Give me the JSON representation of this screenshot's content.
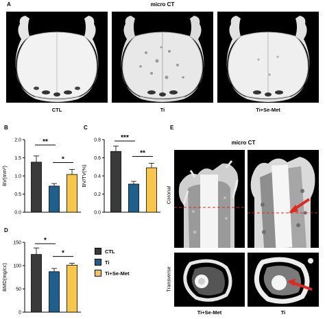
{
  "panel_a": {
    "letter": "A",
    "title": "micro CT",
    "captions": [
      "CTL",
      "Ti",
      "Ti+Se-Met"
    ]
  },
  "panel_b": {
    "letter": "B"
  },
  "panel_c": {
    "letter": "C"
  },
  "panel_d": {
    "letter": "D"
  },
  "panel_e": {
    "letter": "E",
    "title": "micro CT",
    "row_labels": [
      "Coronal",
      "Transverse"
    ],
    "captions": [
      "Ti+Se-Met",
      "Ti"
    ]
  },
  "legend": [
    {
      "label": "CTL",
      "color": "#3a3a3a"
    },
    {
      "label": "Ti",
      "color": "#1f5f8b"
    },
    {
      "label": "Ti+Se-Met",
      "color": "#f7c64a"
    }
  ],
  "colors": {
    "ctl": "#3a3a3a",
    "ti": "#1f5f8b",
    "tise": "#f7c64a",
    "arrow": "#e0281e"
  },
  "chart_data": [
    {
      "type": "bar",
      "categories": [
        "CTL",
        "Ti",
        "Ti+Se-Met"
      ],
      "values": [
        1.38,
        0.72,
        1.04
      ],
      "errors": [
        0.17,
        0.07,
        0.14
      ],
      "ylabel": "BV(mm³)",
      "ylim": [
        0,
        2.0
      ],
      "yticks": [
        "0.0",
        "0.5",
        "1.0",
        "1.5",
        "2.0"
      ],
      "tick_values": [
        0,
        0.5,
        1.0,
        1.5,
        2.0
      ],
      "significance": [
        {
          "pair": [
            0,
            1
          ],
          "label": "**"
        },
        {
          "pair": [
            1,
            2
          ],
          "label": "*"
        }
      ]
    },
    {
      "type": "bar",
      "categories": [
        "CTL",
        "Ti",
        "Ti+Se-Met"
      ],
      "values": [
        0.67,
        0.31,
        0.49
      ],
      "errors": [
        0.06,
        0.03,
        0.05
      ],
      "ylabel": "BV/TV(%)",
      "ylim": [
        0,
        0.8
      ],
      "yticks": [
        "0.0",
        "0.2",
        "0.4",
        "0.6",
        "0.8"
      ],
      "tick_values": [
        0,
        0.2,
        0.4,
        0.6,
        0.8
      ],
      "significance": [
        {
          "pair": [
            0,
            1
          ],
          "label": "***"
        },
        {
          "pair": [
            1,
            2
          ],
          "label": "**"
        }
      ]
    },
    {
      "type": "bar",
      "categories": [
        "CTL",
        "Ti",
        "Ti+Se-Met"
      ],
      "values": [
        124,
        87,
        101
      ],
      "errors": [
        14,
        7,
        4
      ],
      "ylabel": "BMD(mg/cc)",
      "ylim": [
        0,
        150
      ],
      "yticks": [
        "0",
        "50",
        "100",
        "150"
      ],
      "tick_values": [
        0,
        50,
        100,
        150
      ],
      "significance": [
        {
          "pair": [
            0,
            1
          ],
          "label": "*"
        },
        {
          "pair": [
            1,
            2
          ],
          "label": "*"
        }
      ]
    }
  ]
}
